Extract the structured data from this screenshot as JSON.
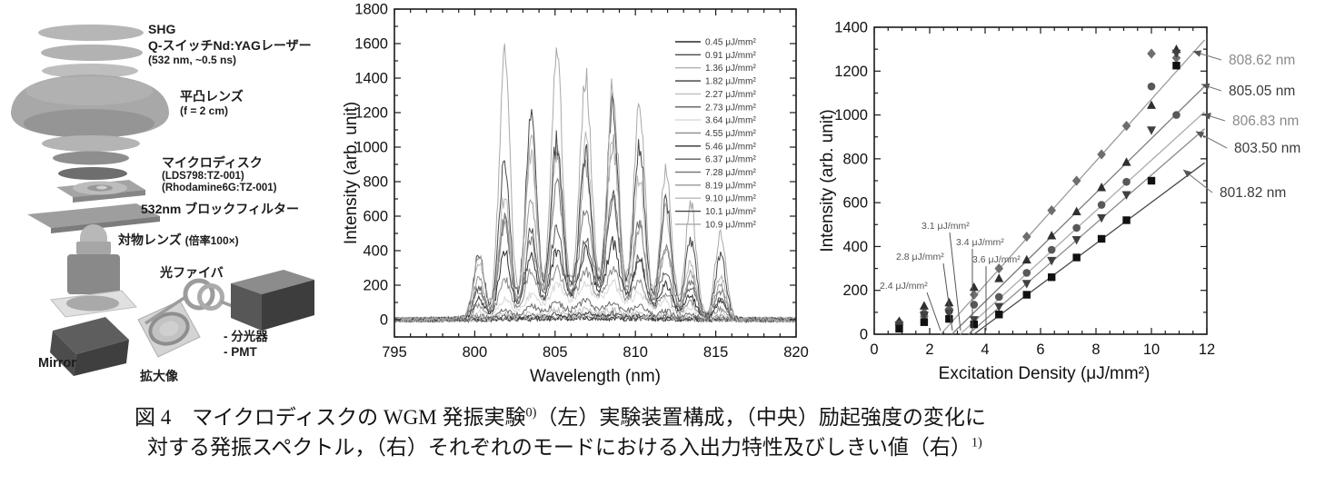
{
  "caption": {
    "prefix": "図 4",
    "line1": "マイクロディスクの WGM 発振実験",
    "sup1": "0)",
    "line1b": "（左）実験装置構成，（中央）励起強度の変化に",
    "line2": "対する発振スペクトル，（右）それぞれのモードにおける入出力特性及びしきい値（右）",
    "sup2": "1)"
  },
  "apparatus": {
    "shg": "SHG",
    "laser": "Q-スイッチNd:YAGレーザー",
    "laser_sub": "(532 nm, ~0.5 ns)",
    "lens": "平凸レンズ",
    "lens_sub": "(f = 2 cm)",
    "microdisk": "マイクロディスク",
    "microdisk_sub1": "(LDS798:TZ-001)",
    "microdisk_sub2": "(Rhodamine6G:TZ-001)",
    "filter": "532nm ブロックフィルター",
    "objective": "対物レンズ",
    "objective_sub": "(倍率100×)",
    "fiber": "光ファイバ",
    "spectrometer": "- 分光器",
    "pmt": "- PMT",
    "mirror": "Mirror",
    "magnified": "拡大像"
  },
  "chart_data": [
    {
      "type": "line",
      "title": "",
      "xlabel": "Wavelength (nm)",
      "ylabel": "Intensity (arb. unit)",
      "xlim": [
        795,
        820
      ],
      "ylim": [
        -100,
        1800
      ],
      "x_ticks": [
        795,
        800,
        805,
        810,
        815,
        820
      ],
      "y_ticks": [
        0,
        200,
        400,
        600,
        800,
        1000,
        1200,
        1400,
        1600,
        1800
      ],
      "grid": false,
      "legend_position": "top-right-inside",
      "peak_positions": [
        800.25,
        801.85,
        803.5,
        805.1,
        806.9,
        808.6,
        810.25,
        811.9,
        813.45,
        815.3
      ],
      "peak_weights": [
        0.3,
        0.92,
        0.78,
        0.9,
        0.8,
        1.0,
        0.66,
        0.56,
        0.38,
        0.3
      ],
      "peak_sigma_nm": 0.48,
      "series": [
        {
          "name": "0.45 μJ/mm²",
          "peak_amp": 0,
          "ase_amp": 8,
          "color": "#2a2a2a"
        },
        {
          "name": "0.91 μJ/mm²",
          "peak_amp": 0,
          "ase_amp": 12,
          "color": "#4a4a4a"
        },
        {
          "name": "1.36 μJ/mm²",
          "peak_amp": 5,
          "ase_amp": 18,
          "color": "#b0b0b0"
        },
        {
          "name": "1.82 μJ/mm²",
          "peak_amp": 12,
          "ase_amp": 25,
          "color": "#3a3a3a"
        },
        {
          "name": "2.27 μJ/mm²",
          "peak_amp": 25,
          "ase_amp": 40,
          "color": "#bdbdbd"
        },
        {
          "name": "2.73 μJ/mm²",
          "peak_amp": 55,
          "ase_amp": 60,
          "color": "#6a6a6a"
        },
        {
          "name": "3.64 μJ/mm²",
          "peak_amp": 130,
          "ase_amp": 120,
          "color": "#d8d8d8"
        },
        {
          "name": "4.55 μJ/mm²",
          "peak_amp": 230,
          "ase_amp": 140,
          "color": "#8a8a8a"
        },
        {
          "name": "5.46 μJ/mm²",
          "peak_amp": 360,
          "ase_amp": 150,
          "color": "#303030"
        },
        {
          "name": "6.37 μJ/mm²",
          "peak_amp": 500,
          "ase_amp": 155,
          "color": "#5a5a5a"
        },
        {
          "name": "7.28 μJ/mm²",
          "peak_amp": 650,
          "ase_amp": 160,
          "color": "#787878"
        },
        {
          "name": "8.19 μJ/mm²",
          "peak_amp": 810,
          "ase_amp": 162,
          "color": "#989898"
        },
        {
          "name": "9.10 μJ/mm²",
          "peak_amp": 1000,
          "ase_amp": 165,
          "color": "#b8b8b8"
        },
        {
          "name": "10.1 μJ/mm²",
          "peak_amp": 1230,
          "ase_amp": 168,
          "color": "#484848"
        },
        {
          "name": "10.9 μJ/mm²",
          "peak_amp": 1600,
          "ase_amp": 172,
          "color": "#a8a8a8"
        }
      ]
    },
    {
      "type": "scatter",
      "title": "",
      "xlabel": "Excitation Density (μJ/mm²)",
      "ylabel": "Intensity (arb. unit)",
      "xlim": [
        0,
        12
      ],
      "ylim": [
        0,
        1400
      ],
      "x_ticks": [
        0,
        2,
        4,
        6,
        8,
        10,
        12
      ],
      "y_ticks": [
        0,
        200,
        400,
        600,
        800,
        1000,
        1200,
        1400
      ],
      "grid": false,
      "x": [
        0.9,
        1.8,
        2.7,
        3.6,
        4.5,
        5.5,
        6.4,
        7.3,
        8.2,
        9.1,
        10.0,
        10.9
      ],
      "series": [
        {
          "name": "808.62 nm",
          "marker": "diamond",
          "threshold_uJ_mm2": 2.4,
          "slope": 141,
          "color": "#6e6e6e",
          "line_color": "#9a9a9a",
          "y": [
            55,
            80,
            115,
            180,
            300,
            445,
            565,
            700,
            820,
            950,
            1280,
            1260
          ]
        },
        {
          "name": "805.05 nm",
          "marker": "triangle-up",
          "threshold_uJ_mm2": 2.8,
          "slope": 124,
          "color": "#2f2f2f",
          "line_color": "#7a7a7a",
          "y": [
            60,
            130,
            145,
            215,
            255,
            340,
            450,
            560,
            670,
            785,
            1045,
            1300
          ]
        },
        {
          "name": "806.83 nm",
          "marker": "circle",
          "threshold_uJ_mm2": 3.1,
          "slope": 115,
          "color": "#585858",
          "line_color": "#ababab",
          "y": [
            45,
            95,
            105,
            135,
            170,
            280,
            385,
            485,
            590,
            695,
            1130,
            1000
          ]
        },
        {
          "name": "803.50 nm",
          "marker": "triangle-down",
          "threshold_uJ_mm2": 3.4,
          "slope": 110,
          "color": "#404040",
          "line_color": "#8a8a8a",
          "y": [
            40,
            85,
            95,
            65,
            125,
            230,
            335,
            430,
            530,
            635,
            930,
            1280
          ]
        },
        {
          "name": "801.82 nm",
          "marker": "square",
          "threshold_uJ_mm2": 3.6,
          "slope": 94,
          "color": "#111111",
          "line_color": "#4a4a4a",
          "y": [
            25,
            55,
            70,
            45,
            90,
            180,
            260,
            350,
            435,
            520,
            700,
            1225
          ]
        }
      ],
      "threshold_labels": [
        {
          "text": "2.4 μJ/mm²",
          "lx": 68,
          "ly": 318,
          "line": [
            120,
            322,
            135,
            364
          ]
        },
        {
          "text": "2.8 μJ/mm²",
          "lx": 86,
          "ly": 286,
          "line": [
            138,
            290,
            148,
            364
          ]
        },
        {
          "text": "3.1 μJ/mm²",
          "lx": 114,
          "ly": 252,
          "line": [
            145,
            256,
            157,
            364
          ]
        },
        {
          "text": "3.4 μJ/mm²",
          "lx": 152,
          "ly": 270,
          "line": [
            170,
            274,
            170,
            364
          ]
        },
        {
          "text": "3.6 μJ/mm²",
          "lx": 170,
          "ly": 289,
          "line": [
            185,
            293,
            185,
            364
          ]
        }
      ],
      "mode_labels": [
        {
          "text": "808.62 nm",
          "lx": 452,
          "ly": 66,
          "tx": 11.5,
          "ty": 1290,
          "color": "#8a8a8a"
        },
        {
          "text": "805.05 nm",
          "lx": 452,
          "ly": 100,
          "tx": 11.8,
          "ty": 1140,
          "color": "#3a3a3a"
        },
        {
          "text": "806.83 nm",
          "lx": 456,
          "ly": 133,
          "tx": 11.85,
          "ty": 1005,
          "color": "#8a8a8a"
        },
        {
          "text": "803.50 nm",
          "lx": 458,
          "ly": 163,
          "tx": 11.6,
          "ty": 925,
          "color": "#3a3a3a"
        },
        {
          "text": "801.82 nm",
          "lx": 442,
          "ly": 212,
          "tx": 11.15,
          "ty": 750,
          "color": "#3a3a3a"
        }
      ]
    }
  ]
}
